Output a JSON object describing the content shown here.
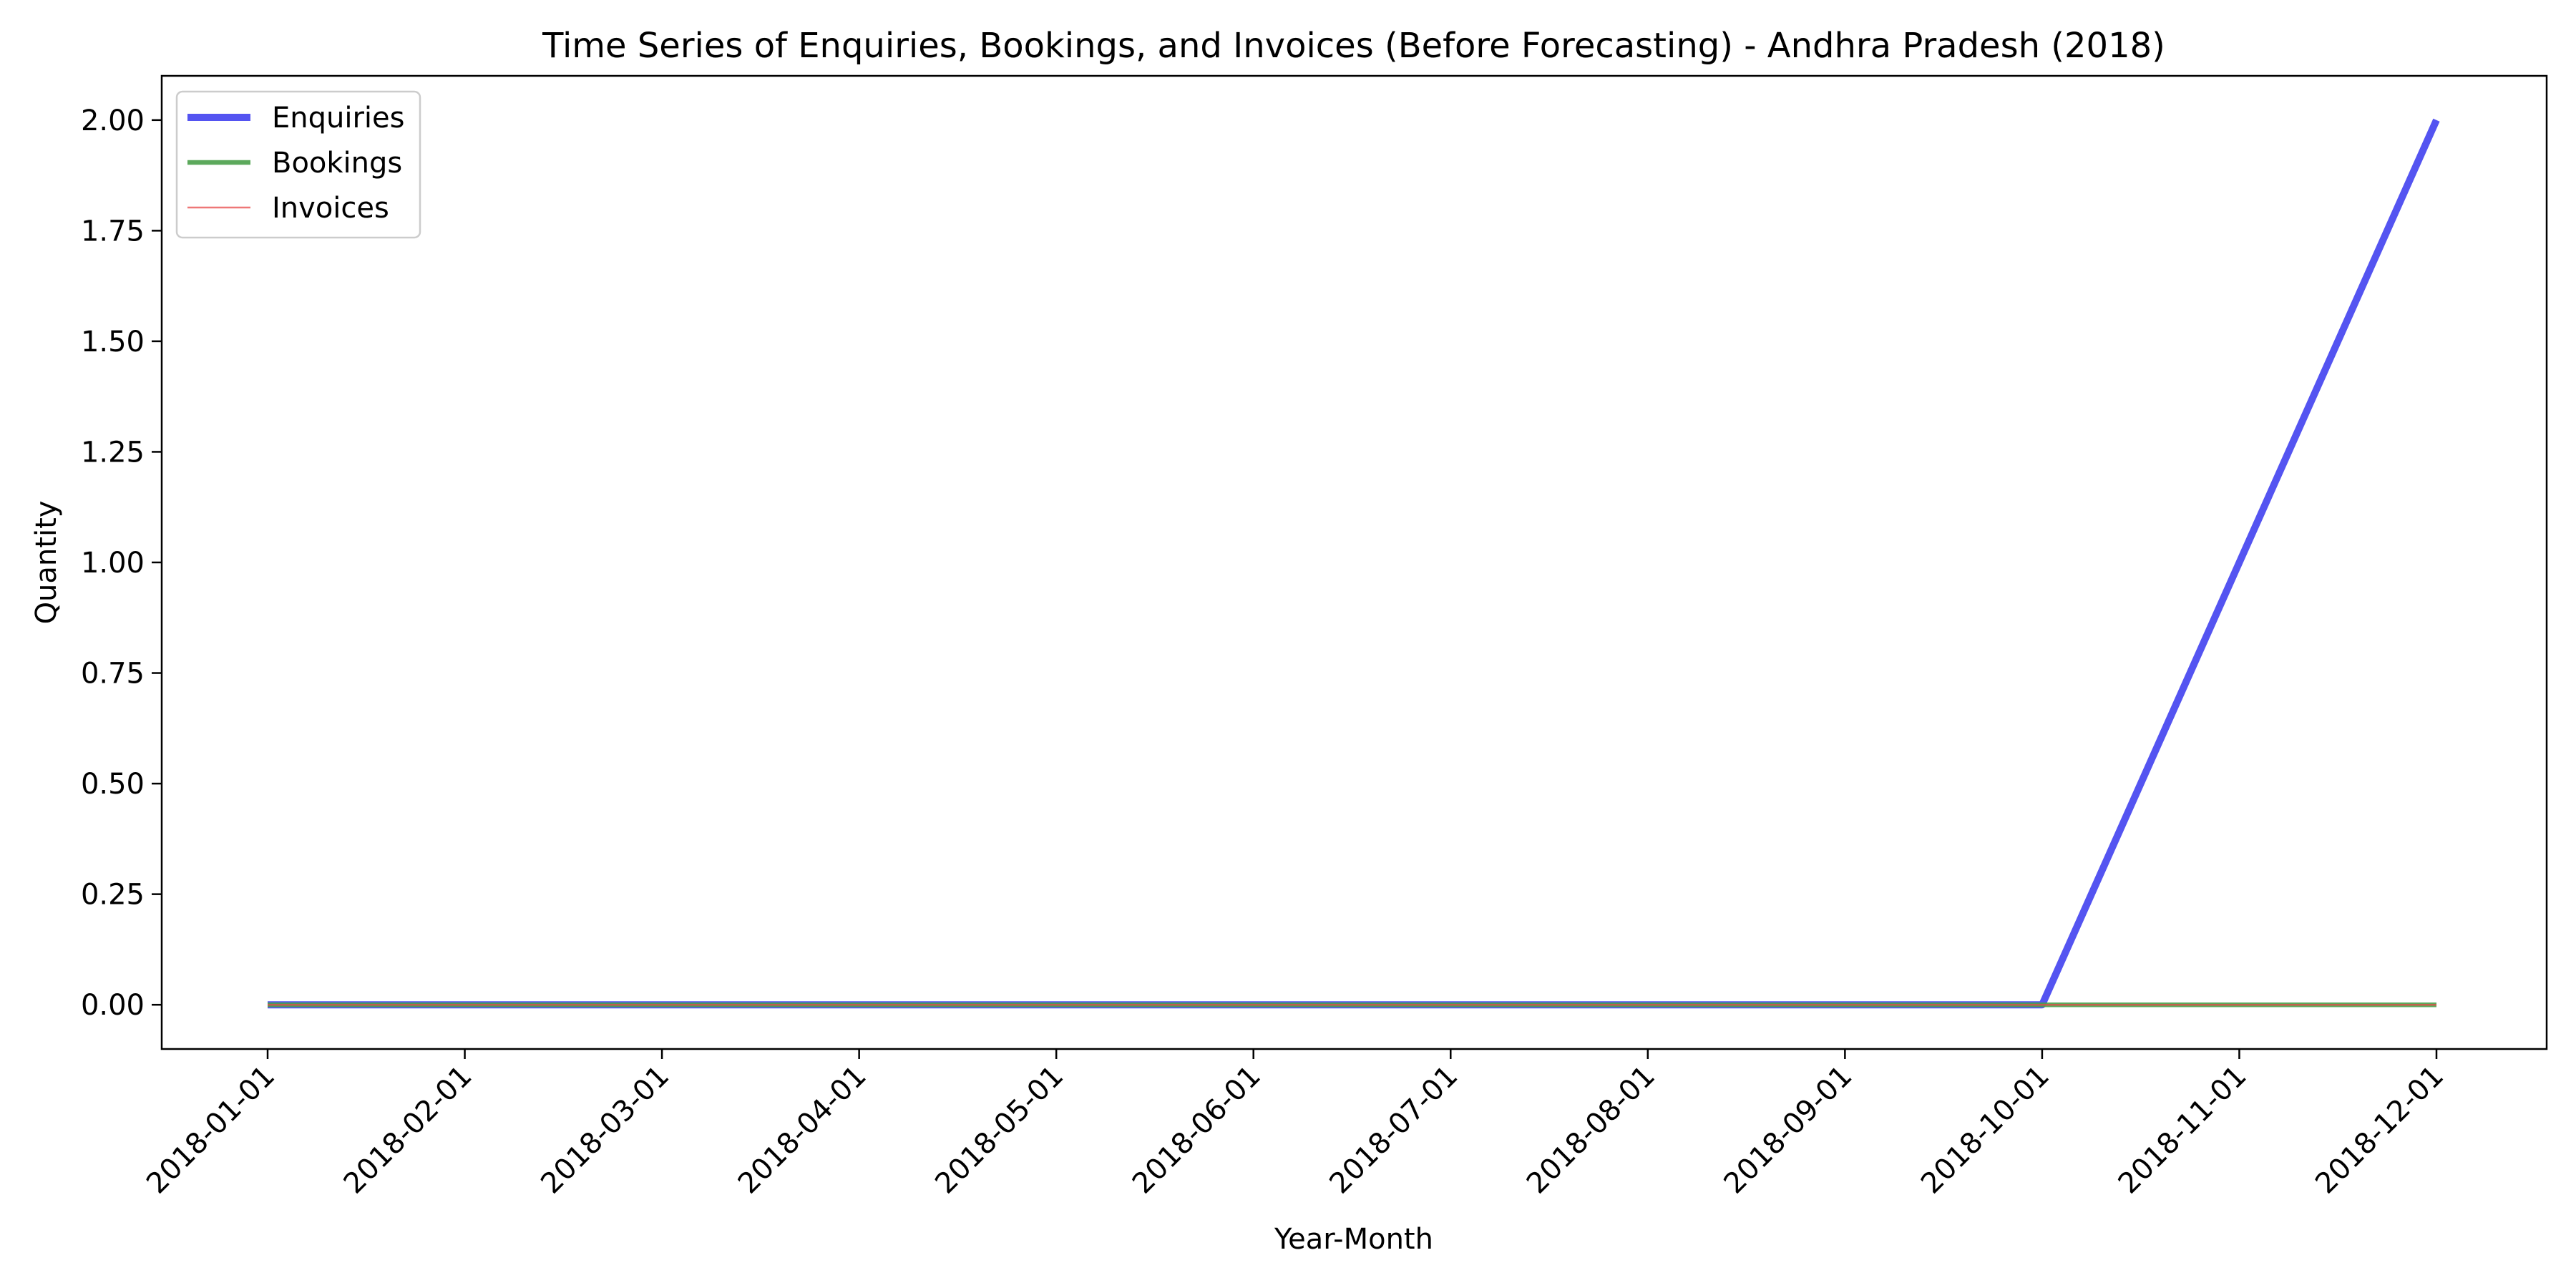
{
  "chart_data": {
    "type": "line",
    "title": "Time Series of Enquiries, Bookings, and Invoices (Before Forecasting) - Andhra Pradesh (2018)",
    "xlabel": "Year-Month",
    "ylabel": "Quantity",
    "x": [
      "2018-01-01",
      "2018-02-01",
      "2018-03-01",
      "2018-04-01",
      "2018-05-01",
      "2018-06-01",
      "2018-07-01",
      "2018-08-01",
      "2018-09-01",
      "2018-10-01",
      "2018-11-01",
      "2018-12-01"
    ],
    "yticks": [
      "0.00",
      "0.25",
      "0.50",
      "0.75",
      "1.00",
      "1.25",
      "1.50",
      "1.75",
      "2.00"
    ],
    "ylim": [
      -0.1,
      2.1
    ],
    "grid": false,
    "legend_position": "upper-left",
    "series": [
      {
        "name": "Enquiries",
        "color": "#4b4bf0",
        "values": [
          0,
          0,
          0,
          0,
          0,
          0,
          0,
          0,
          0,
          0,
          1,
          2
        ]
      },
      {
        "name": "Bookings",
        "color": "#4aa04a",
        "values": [
          0,
          0,
          0,
          0,
          0,
          0,
          0,
          0,
          0,
          0,
          0,
          0
        ]
      },
      {
        "name": "Invoices",
        "color": "#e84a4a",
        "values": [
          0,
          0,
          0,
          0,
          0,
          0,
          0,
          0,
          0,
          0,
          0,
          0
        ]
      }
    ]
  }
}
